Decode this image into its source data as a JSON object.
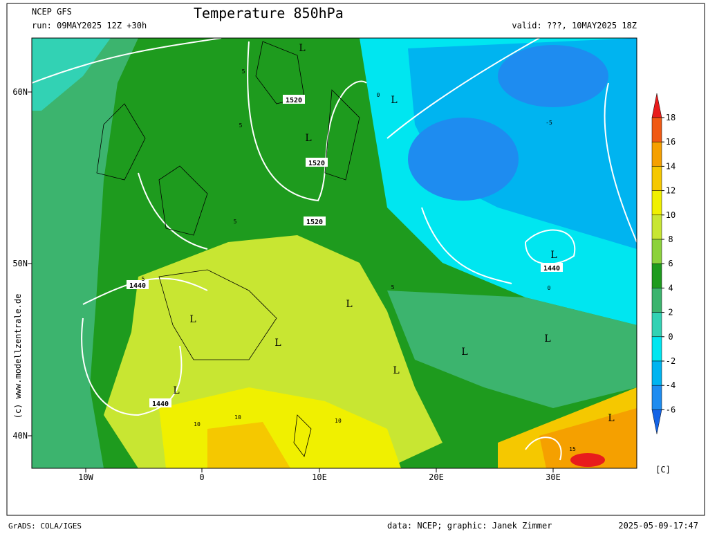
{
  "header": {
    "model": "NCEP GFS",
    "run": "run: 09MAY2025 12Z +30h",
    "title": "Temperature 850hPa",
    "valid": "valid: ???, 10MAY2025 18Z"
  },
  "map": {
    "lat_labels": [
      "60N",
      "50N",
      "40N"
    ],
    "lon_labels": [
      "10W",
      "0",
      "10E",
      "20E",
      "30E"
    ],
    "contour_labels": [
      "1520",
      "1520",
      "1520",
      "1440",
      "1440",
      "1440",
      "L",
      "L",
      "L",
      "L",
      "L",
      "L",
      "L",
      "L",
      "L",
      "L",
      "L",
      "L",
      "5",
      "5",
      "5",
      "5",
      "5",
      "0",
      "0",
      "-5",
      "10",
      "10",
      "10",
      "15"
    ]
  },
  "colorbar": {
    "ticks": [
      18,
      16,
      14,
      12,
      10,
      8,
      6,
      4,
      2,
      0,
      -2,
      -4,
      -6
    ],
    "colors": [
      "#e81c1c",
      "#f05a14",
      "#f5a000",
      "#f5c800",
      "#f0f000",
      "#c8e632",
      "#8cd23c",
      "#1e9b1e",
      "#3cb46e",
      "#32d2b4",
      "#00e6f0",
      "#00b4f0",
      "#1e8cf0",
      "#1464e6"
    ],
    "unit": "[C]"
  },
  "credit": "(c) www.modellzentrale.de",
  "footer": {
    "left": "GrADS: COLA/IGES",
    "center": "data: NCEP; graphic: Janek Zimmer",
    "right": "2025-05-09-17:47"
  }
}
